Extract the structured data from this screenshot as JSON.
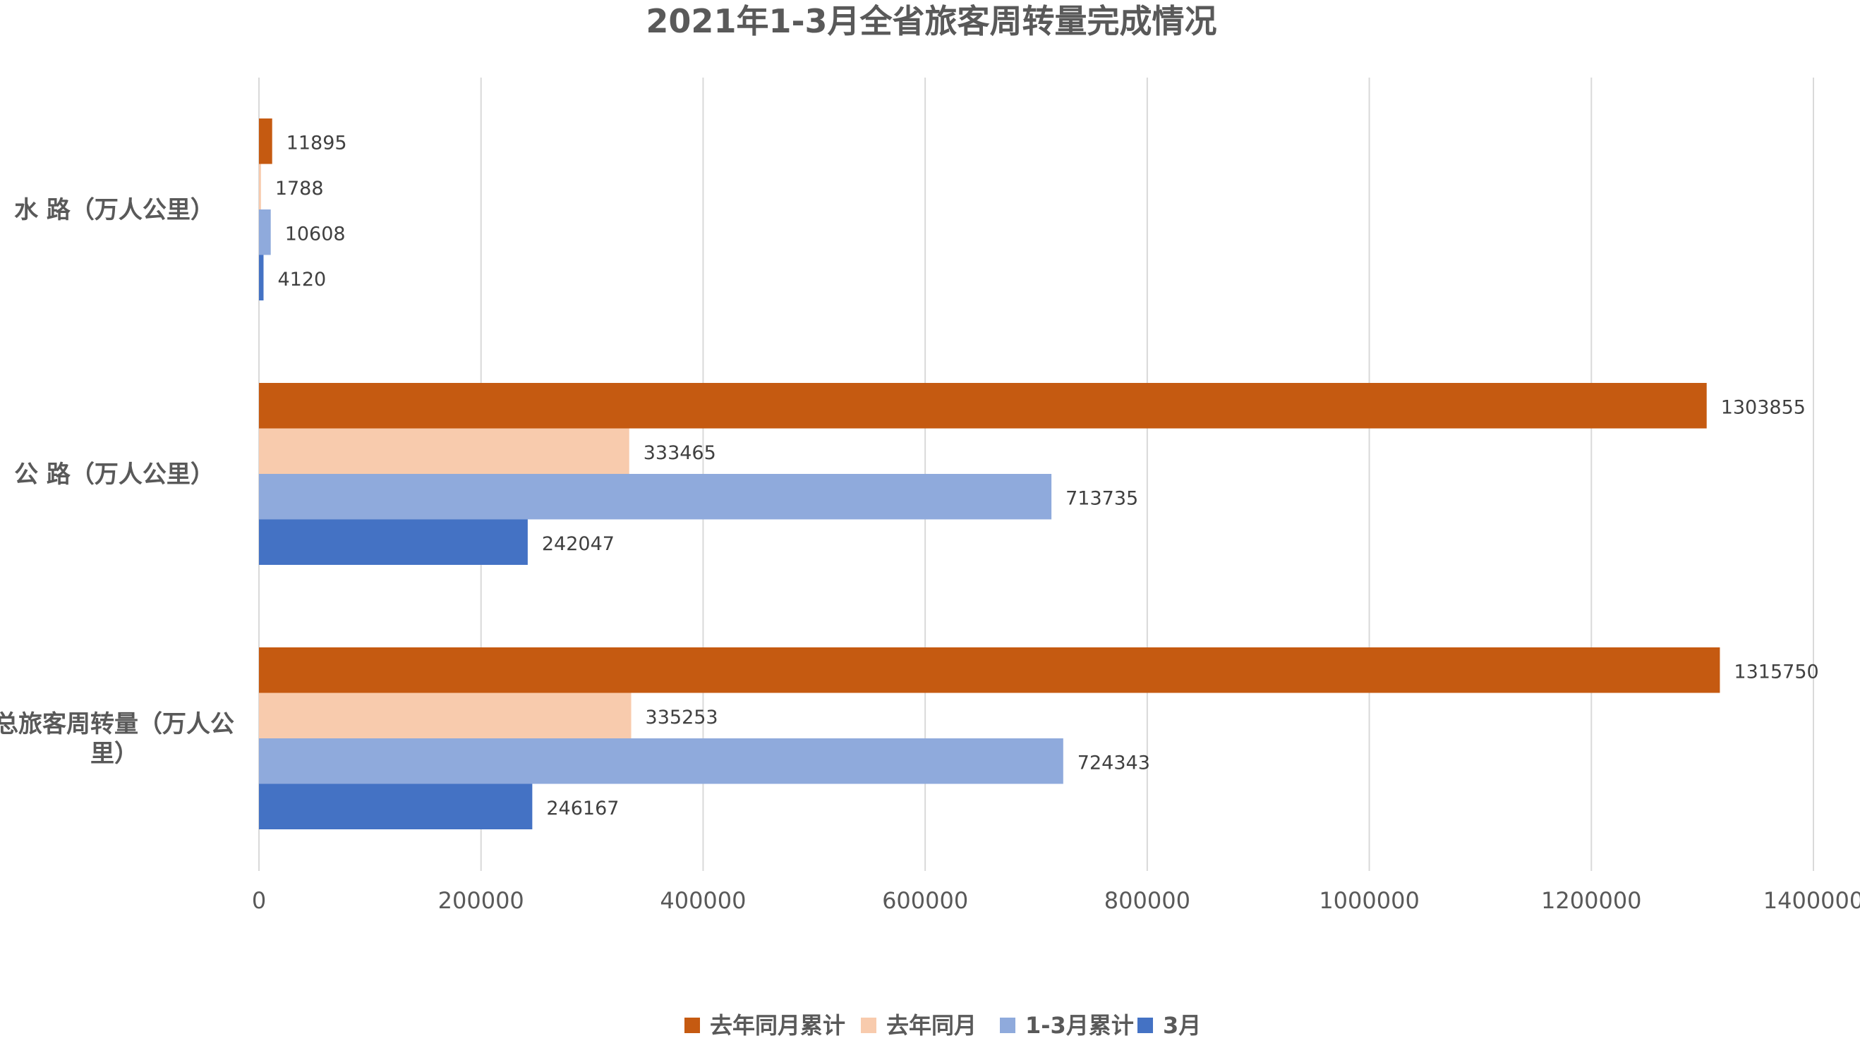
{
  "chart_data": {
    "type": "bar",
    "orientation": "horizontal",
    "title": "2021年1-3月全省旅客周转量完成情况",
    "categories": [
      [
        "水 路（万人公里）"
      ],
      [
        "公 路（万人公里）"
      ],
      [
        "总旅客周转量（万人公",
        "里）"
      ]
    ],
    "series": [
      {
        "name": "去年同月累计",
        "color": "#c55a11",
        "values": [
          11895,
          1303855,
          1315750
        ]
      },
      {
        "name": "去年同月",
        "color": "#f8cbad",
        "values": [
          1788,
          333465,
          335253
        ]
      },
      {
        "name": "1-3月累计",
        "color": "#8faadc",
        "values": [
          10608,
          713735,
          724343
        ]
      },
      {
        "name": "3月",
        "color": "#4472c4",
        "values": [
          4120,
          242047,
          246167
        ]
      }
    ],
    "xlim": [
      0,
      1400000
    ],
    "xticks": [
      "0",
      "200000",
      "400000",
      "600000",
      "800000",
      "1000000",
      "1200000",
      "1400000"
    ],
    "grid": true,
    "legend": "bottom"
  }
}
